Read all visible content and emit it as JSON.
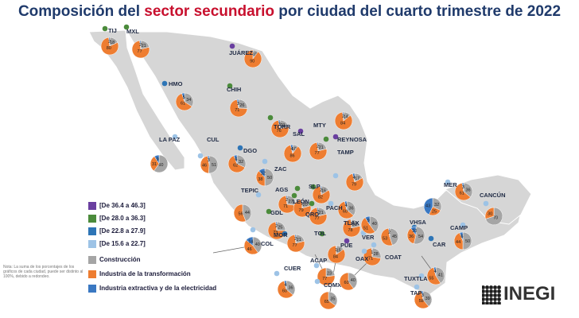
{
  "title": {
    "before": "Composición del ",
    "highlight": "sector secundario",
    "after": " por ciudad del cuarto trimestre de 2022"
  },
  "colors": {
    "construccion": "#a5a5a5",
    "industria": "#ee7d31",
    "extractiva": "#3a78c2",
    "map": "#d6d6d6",
    "range1": "#6a3fa0",
    "range2": "#4b8b3b",
    "range3": "#2e75b6",
    "range4": "#9dc3e6"
  },
  "legend_ranges": [
    {
      "label": "[De 36.4 a 46.3]",
      "color": "#6a3fa0"
    },
    {
      "label": "[De 28.0 a 36.3]",
      "color": "#4b8b3b"
    },
    {
      "label": "[De 22.8 a 27.9]",
      "color": "#2e75b6"
    },
    {
      "label": "[De 15.6 a 22.7]",
      "color": "#9dc3e6"
    }
  ],
  "legend_components": [
    {
      "label": "Construcción",
      "color": "#a5a5a5"
    },
    {
      "label": "Industria de la transformación",
      "color": "#ee7d31"
    },
    {
      "label": "Industria extractiva y de la electricidad",
      "color": "#3a78c2"
    }
  ],
  "note": "Nota: La suma de los porcentajes de los gráficos de cada ciudad, puede ser distinto al 100%, debido a redondeo.",
  "logo": "INEGI",
  "cities": [
    {
      "name": "TIJ",
      "construccion": 18,
      "industria": 80,
      "extractiva": 2,
      "range": 2
    },
    {
      "name": "MXL",
      "construccion": 21,
      "industria": 77,
      "extractiva": 2,
      "range": 2
    },
    {
      "name": "JUÁREZ",
      "construccion": 10,
      "industria": 90,
      "extractiva": 0,
      "range": 1
    },
    {
      "name": "HMO",
      "construccion": 34,
      "industria": 61,
      "extractiva": 5,
      "range": 3
    },
    {
      "name": "CHIH",
      "construccion": 26,
      "industria": 71,
      "extractiva": 3,
      "range": 2
    },
    {
      "name": "LA PAZ",
      "construccion": 60,
      "industria": 31,
      "extractiva": 9,
      "range": 4
    },
    {
      "name": "CUL",
      "construccion": 51,
      "industria": 46,
      "extractiva": 3,
      "range": 4
    },
    {
      "name": "TORR",
      "construccion": 21,
      "industria": 76,
      "extractiva": 3,
      "range": 2
    },
    {
      "name": "MTY",
      "construccion": 21,
      "industria": 77,
      "extractiva": 2,
      "range": 2
    },
    {
      "name": "SAL",
      "construccion": 10,
      "industria": 86,
      "extractiva": 4,
      "range": 1
    },
    {
      "name": "REYNOSA",
      "construccion": 14,
      "industria": 84,
      "extractiva": 2,
      "range": 1
    },
    {
      "name": "DGO",
      "construccion": 32,
      "industria": 62,
      "extractiva": 6,
      "range": 3
    },
    {
      "name": "ZAC",
      "construccion": 50,
      "industria": 38,
      "extractiva": 12,
      "range": 4
    },
    {
      "name": "TEPIC",
      "construccion": 44,
      "industria": 56,
      "extractiva": 0,
      "range": 4
    },
    {
      "name": "AGS",
      "construccion": 27,
      "industria": 71,
      "extractiva": 2,
      "range": 2
    },
    {
      "name": "SLP",
      "construccion": 16,
      "industria": 82,
      "extractiva": 2,
      "range": 2
    },
    {
      "name": "TAMP",
      "construccion": 17,
      "industria": 79,
      "extractiva": 4,
      "range": 4
    },
    {
      "name": "GDL",
      "construccion": 25,
      "industria": 73,
      "extractiva": 2,
      "range": 2
    },
    {
      "name": "LEÓN",
      "construccion": 20,
      "industria": 79,
      "extractiva": 1,
      "range": 2
    },
    {
      "name": "QRO",
      "construccion": 21,
      "industria": 77,
      "extractiva": 2,
      "range": 2
    },
    {
      "name": "PACH",
      "construccion": 36,
      "industria": 60,
      "extractiva": 4,
      "range": 4
    },
    {
      "name": "COL",
      "construccion": 40,
      "industria": 46,
      "extractiva": 14,
      "range": 4
    },
    {
      "name": "MOR",
      "construccion": 21,
      "industria": 77,
      "extractiva": 2,
      "range": 3
    },
    {
      "name": "TOL",
      "construccion": 15,
      "industria": 84,
      "extractiva": 1,
      "range": 2
    },
    {
      "name": "TLAX",
      "construccion": 21,
      "industria": 78,
      "extractiva": 1,
      "range": 1
    },
    {
      "name": "PUE",
      "construccion": 28,
      "industria": 71,
      "extractiva": 1,
      "range": 1
    },
    {
      "name": "VER",
      "construccion": 40,
      "industria": 51,
      "extractiva": 9,
      "range": 4
    },
    {
      "name": "COAT",
      "construccion": 45,
      "industria": 53,
      "extractiva": 2,
      "range": 4
    },
    {
      "name": "VHSA",
      "construccion": 54,
      "industria": 36,
      "extractiva": 10,
      "range": 3
    },
    {
      "name": "CAR",
      "construccion": 32,
      "industria": 25,
      "extractiva": 43,
      "range": 3
    },
    {
      "name": "CAMP",
      "construccion": 50,
      "industria": 44,
      "extractiva": 6,
      "range": 4
    },
    {
      "name": "MER",
      "construccion": 36,
      "industria": 61,
      "extractiva": 3,
      "range": 4
    },
    {
      "name": "CANCÚN",
      "construccion": 70,
      "industria": 30,
      "extractiva": 0,
      "range": 4
    },
    {
      "name": "ACAP",
      "construccion": 23,
      "industria": 77,
      "extractiva": 0,
      "range": 4
    },
    {
      "name": "CUER",
      "construccion": 36,
      "industria": 60,
      "extractiva": 4,
      "range": 4
    },
    {
      "name": "CDMX",
      "construccion": 35,
      "industria": 65,
      "extractiva": 0,
      "range": 4
    },
    {
      "name": "OAX",
      "construccion": 40,
      "industria": 60,
      "extractiva": 0,
      "range": 4
    },
    {
      "name": "TUXTLA",
      "construccion": 41,
      "industria": 55,
      "extractiva": 4,
      "range": 4
    },
    {
      "name": "TAP",
      "construccion": 39,
      "industria": 58,
      "extractiva": 3,
      "range": 4
    }
  ]
}
